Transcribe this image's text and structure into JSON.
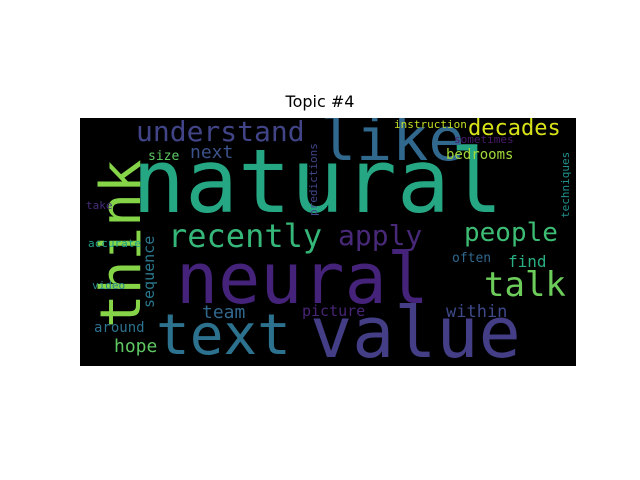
{
  "figure": {
    "title": "Topic #4"
  },
  "wordcloud": {
    "background": "#000000",
    "words": [
      {
        "text": "natural",
        "color": "#26a784",
        "orientation": "horizontal"
      },
      {
        "text": "neural",
        "color": "#46237a",
        "orientation": "horizontal"
      },
      {
        "text": "value",
        "color": "#433e85",
        "orientation": "horizontal"
      },
      {
        "text": "text",
        "color": "#2c728e",
        "orientation": "horizontal"
      },
      {
        "text": "think",
        "color": "#86d549",
        "orientation": "vertical"
      },
      {
        "text": "like",
        "color": "#31688e",
        "orientation": "horizontal"
      },
      {
        "text": "understand",
        "color": "#414487",
        "orientation": "horizontal"
      },
      {
        "text": "recently",
        "color": "#35b779",
        "orientation": "horizontal"
      },
      {
        "text": "apply",
        "color": "#482878",
        "orientation": "horizontal"
      },
      {
        "text": "people",
        "color": "#3dbc74",
        "orientation": "horizontal"
      },
      {
        "text": "talk",
        "color": "#6ccd5a",
        "orientation": "horizontal"
      },
      {
        "text": "decades",
        "color": "#d8e219",
        "orientation": "horizontal"
      },
      {
        "text": "next",
        "color": "#3b528b",
        "orientation": "horizontal"
      },
      {
        "text": "size",
        "color": "#5ec962",
        "orientation": "horizontal"
      },
      {
        "text": "sequence",
        "color": "#2a788e",
        "orientation": "vertical"
      },
      {
        "text": "team",
        "color": "#31688e",
        "orientation": "horizontal"
      },
      {
        "text": "picture",
        "color": "#482475",
        "orientation": "horizontal"
      },
      {
        "text": "within",
        "color": "#3e4989",
        "orientation": "horizontal"
      },
      {
        "text": "find",
        "color": "#29af7f",
        "orientation": "horizontal"
      },
      {
        "text": "often",
        "color": "#31688e",
        "orientation": "horizontal"
      },
      {
        "text": "bedrooms",
        "color": "#a0da39",
        "orientation": "horizontal"
      },
      {
        "text": "instruction",
        "color": "#c2df23",
        "orientation": "horizontal"
      },
      {
        "text": "sometimes",
        "color": "#481a6c",
        "orientation": "horizontal"
      },
      {
        "text": "predictions",
        "color": "#404688",
        "orientation": "vertical"
      },
      {
        "text": "techniques",
        "color": "#21918c",
        "orientation": "vertical"
      },
      {
        "text": "take",
        "color": "#472d7b",
        "orientation": "horizontal"
      },
      {
        "text": "accurate",
        "color": "#1f9e89",
        "orientation": "horizontal"
      },
      {
        "text": "video",
        "color": "#26828e",
        "orientation": "horizontal"
      },
      {
        "text": "around",
        "color": "#2c728e",
        "orientation": "horizontal"
      },
      {
        "text": "hope",
        "color": "#5ec962",
        "orientation": "horizontal"
      }
    ]
  }
}
